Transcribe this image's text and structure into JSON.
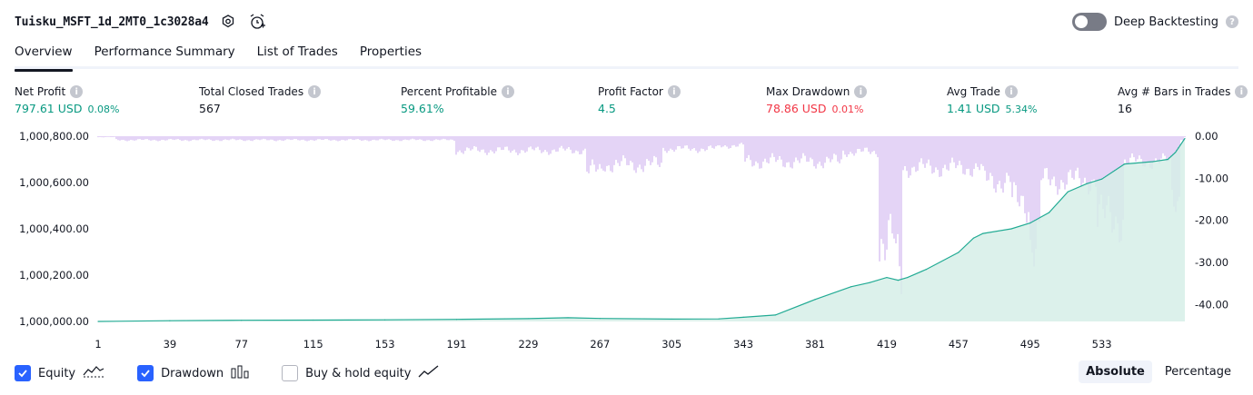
{
  "header": {
    "strategy_name": "Tuisku_MSFT_1d_2MT0_1c3028a4",
    "deep_backtesting_label": "Deep Backtesting",
    "deep_backtesting_enabled": false
  },
  "tabs": [
    {
      "label": "Overview",
      "active": true
    },
    {
      "label": "Performance Summary",
      "active": false
    },
    {
      "label": "List of Trades",
      "active": false
    },
    {
      "label": "Properties",
      "active": false
    }
  ],
  "metrics": {
    "net_profit": {
      "label": "Net Profit",
      "value": "797.61",
      "unit": "USD",
      "pct": "0.08%"
    },
    "total_closed_trades": {
      "label": "Total Closed Trades",
      "value": "567"
    },
    "percent_profitable": {
      "label": "Percent Profitable",
      "value": "59.61%"
    },
    "profit_factor": {
      "label": "Profit Factor",
      "value": "4.5"
    },
    "max_drawdown": {
      "label": "Max Drawdown",
      "value": "78.86",
      "unit": "USD",
      "pct": "0.01%"
    },
    "avg_trade": {
      "label": "Avg Trade",
      "value": "1.41",
      "unit": "USD",
      "pct": "5.34%"
    },
    "avg_bars": {
      "label": "Avg # Bars in Trades",
      "value": "16"
    }
  },
  "chart_data": {
    "type": "area",
    "x_ticks": [
      "1",
      "39",
      "77",
      "115",
      "153",
      "191",
      "229",
      "267",
      "305",
      "343",
      "381",
      "419",
      "457",
      "495",
      "533"
    ],
    "x_range": [
      1,
      577
    ],
    "y_left_ticks": [
      "1,000,800.00",
      "1,000,600.00",
      "1,000,400.00",
      "1,000,200.00",
      "1,000,000.00"
    ],
    "y_left_range": [
      1000000,
      1000800
    ],
    "y_right_ticks": [
      "0.00",
      "-10.00",
      "-20.00",
      "-30.00",
      "-40.00"
    ],
    "y_right_range": [
      -44,
      0
    ],
    "series": [
      {
        "name": "Equity",
        "kind": "area",
        "color": "#22ab94",
        "fill": "#d6efe8",
        "points": [
          [
            1,
            1000000
          ],
          [
            39,
            1000003
          ],
          [
            77,
            1000005
          ],
          [
            115,
            1000006
          ],
          [
            153,
            1000007
          ],
          [
            191,
            1000009
          ],
          [
            229,
            1000012
          ],
          [
            250,
            1000016
          ],
          [
            267,
            1000013
          ],
          [
            305,
            1000010
          ],
          [
            330,
            1000011
          ],
          [
            343,
            1000018
          ],
          [
            360,
            1000028
          ],
          [
            381,
            1000095
          ],
          [
            400,
            1000150
          ],
          [
            410,
            1000168
          ],
          [
            419,
            1000190
          ],
          [
            425,
            1000178
          ],
          [
            430,
            1000190
          ],
          [
            440,
            1000225
          ],
          [
            457,
            1000298
          ],
          [
            465,
            1000360
          ],
          [
            470,
            1000380
          ],
          [
            485,
            1000400
          ],
          [
            495,
            1000425
          ],
          [
            505,
            1000470
          ],
          [
            515,
            1000560
          ],
          [
            525,
            1000595
          ],
          [
            533,
            1000615
          ],
          [
            545,
            1000680
          ],
          [
            560,
            1000690
          ],
          [
            568,
            1000700
          ],
          [
            572,
            1000730
          ],
          [
            577,
            1000790
          ]
        ]
      },
      {
        "name": "Drawdown",
        "kind": "bars",
        "color": "#c9a9ee",
        "bands": [
          {
            "from": 1,
            "to": 10,
            "depth": 0.3
          },
          {
            "from": 10,
            "to": 190,
            "depth": 1.2
          },
          {
            "from": 190,
            "to": 260,
            "depth": 4.5
          },
          {
            "from": 260,
            "to": 268,
            "depth": 11
          },
          {
            "from": 268,
            "to": 300,
            "depth": 9
          },
          {
            "from": 300,
            "to": 330,
            "depth": 4
          },
          {
            "from": 330,
            "to": 343,
            "depth": 3
          },
          {
            "from": 343,
            "to": 395,
            "depth": 8
          },
          {
            "from": 395,
            "to": 415,
            "depth": 5
          },
          {
            "from": 415,
            "to": 423,
            "depth": 33
          },
          {
            "from": 423,
            "to": 427,
            "depth": 43
          },
          {
            "from": 427,
            "to": 470,
            "depth": 10
          },
          {
            "from": 470,
            "to": 485,
            "depth": 14
          },
          {
            "from": 485,
            "to": 495,
            "depth": 21
          },
          {
            "from": 495,
            "to": 500,
            "depth": 33
          },
          {
            "from": 500,
            "to": 530,
            "depth": 14
          },
          {
            "from": 530,
            "to": 545,
            "depth": 26
          },
          {
            "from": 545,
            "to": 570,
            "depth": 8
          },
          {
            "from": 570,
            "to": 575,
            "depth": 19
          },
          {
            "from": 575,
            "to": 577,
            "depth": 1
          }
        ]
      }
    ]
  },
  "legend": [
    {
      "label": "Equity",
      "checked": true,
      "icon": "equity-line-icon"
    },
    {
      "label": "Drawdown",
      "checked": true,
      "icon": "drawdown-bars-icon"
    },
    {
      "label": "Buy & hold equity",
      "checked": false,
      "icon": "buy-hold-line-icon"
    }
  ],
  "mode": {
    "absolute_label": "Absolute",
    "percentage_label": "Percentage",
    "selected": "Absolute"
  },
  "colors": {
    "green": "#089981",
    "red": "#f23645",
    "accent": "#2962ff"
  }
}
